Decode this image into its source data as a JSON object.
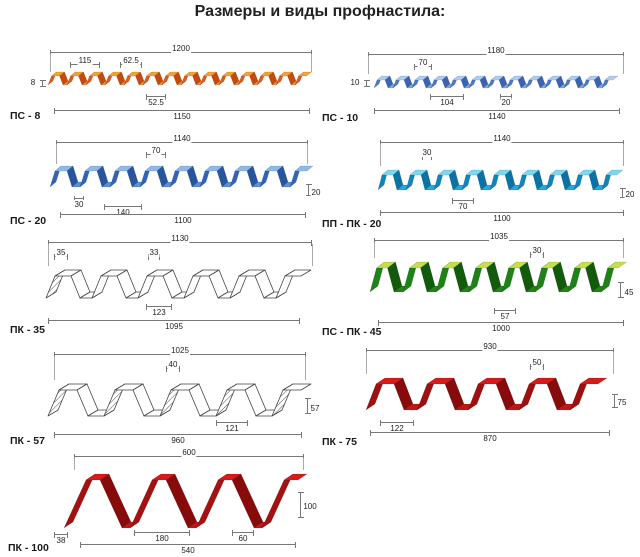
{
  "title": "Размеры и виды профнастила:",
  "profiles": [
    {
      "label": "ПС - 8",
      "total": "1200",
      "useful": "1150",
      "height": "8",
      "extras": [
        "115",
        "62.5",
        "52.5"
      ],
      "colors": {
        "top": "#F6A233",
        "up": "#E05A18",
        "down": "#C44A0E",
        "bottom": "#EE9440"
      }
    },
    {
      "label": "ПС - 10",
      "total": "1180",
      "useful": "1140",
      "height": "10",
      "extras": [
        "70",
        "104",
        "20"
      ],
      "colors": {
        "top": "#AECDF2",
        "up": "#4A79C9",
        "down": "#3A64B2",
        "bottom": "#7FA8E0"
      }
    },
    {
      "label": "ПС - 20",
      "total": "1140",
      "useful": "1100",
      "height": "20",
      "extras": [
        "70",
        "30",
        "140"
      ],
      "colors": {
        "top": "#8FB9EA",
        "up": "#2F64B8",
        "down": "#27559E",
        "bottom": "#5C90D6"
      }
    },
    {
      "label": "ПП - ПК - 20",
      "total": "1140",
      "useful": "1100",
      "height": "20",
      "extras": [
        "30",
        "70"
      ],
      "colors": {
        "top": "#7FD8F2",
        "up": "#0E86BC",
        "down": "#0B73A4",
        "bottom": "#27A7DA"
      }
    },
    {
      "label": "ПК - 35",
      "total": "1130",
      "useful": "1095",
      "extras": [
        "35",
        "33",
        "123"
      ],
      "colors": {
        "top": "#FFFFFF",
        "up": "#FFFFFF",
        "down": "#FFFFFF",
        "bottom": "#FFFFFF",
        "stroke": "#444444"
      }
    },
    {
      "label": "ПС - ПК - 45",
      "total": "1035",
      "useful": "1000",
      "height": "45",
      "extras": [
        "30",
        "57"
      ],
      "colors": {
        "top": "#C4DF4A",
        "up": "#1E8316",
        "down": "#125A0C",
        "bottom": "#27821C"
      }
    },
    {
      "label": "ПК - 57",
      "total": "1025",
      "useful": "960",
      "height": "57",
      "extras": [
        "40",
        "121"
      ],
      "colors": {
        "top": "#FFFFFF",
        "up": "#FFFFFF",
        "down": "#FFFFFF",
        "bottom": "#FFFFFF",
        "stroke": "#444444"
      }
    },
    {
      "label": "ПК - 75",
      "total": "930",
      "useful": "870",
      "height": "75",
      "extras": [
        "50",
        "122"
      ],
      "colors": {
        "top": "#D81A1A",
        "up": "#9E0F0F",
        "down": "#870B0B",
        "bottom": "#C41616"
      }
    },
    {
      "label": "ПК - 100",
      "total": "600",
      "useful": "540",
      "height": "100",
      "extras": [
        "38",
        "180",
        "60"
      ],
      "colors": {
        "top": "#D81A1A",
        "up": "#A31111",
        "down": "#870B0B",
        "bottom": "#C41616"
      }
    }
  ]
}
